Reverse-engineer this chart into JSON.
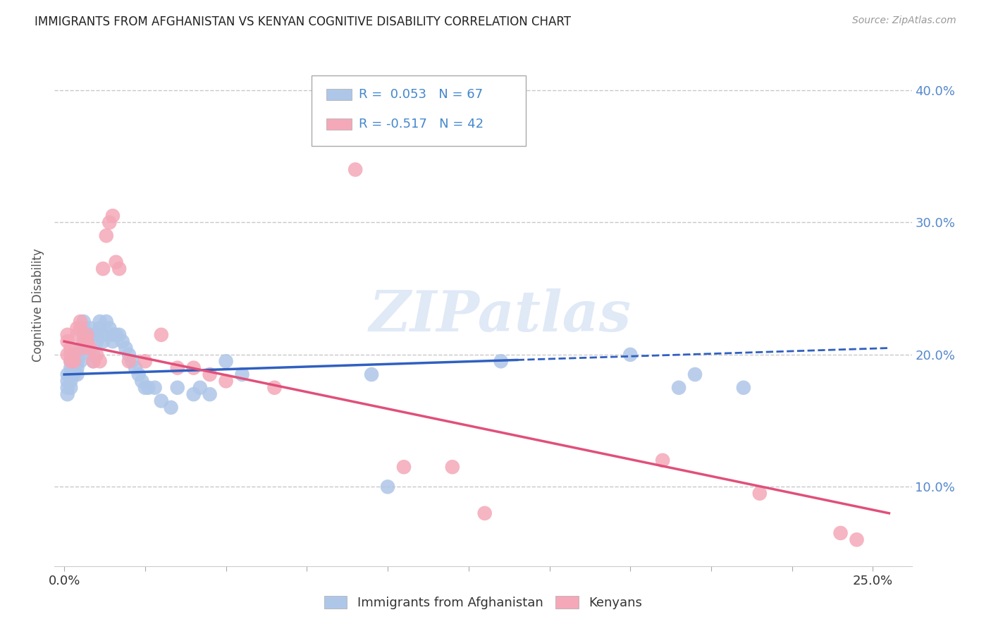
{
  "title": "IMMIGRANTS FROM AFGHANISTAN VS KENYAN COGNITIVE DISABILITY CORRELATION CHART",
  "source": "Source: ZipAtlas.com",
  "ylabel": "Cognitive Disability",
  "xlim": [
    -0.003,
    0.262
  ],
  "ylim": [
    0.04,
    0.435
  ],
  "afghanistan_R": 0.053,
  "afghanistan_N": 67,
  "kenya_R": -0.517,
  "kenya_N": 42,
  "afghanistan_color": "#aec6e8",
  "kenya_color": "#f4a8b8",
  "afghanistan_line_color": "#3060c0",
  "kenya_line_color": "#e0507a",
  "watermark": "ZIPatlas",
  "background_color": "#ffffff",
  "grid_color": "#c8c8c8",
  "afg_line_start_y": 0.185,
  "afg_line_end_y": 0.205,
  "ken_line_start_y": 0.21,
  "ken_line_end_y": 0.08,
  "afg_x": [
    0.001,
    0.001,
    0.001,
    0.001,
    0.002,
    0.002,
    0.002,
    0.002,
    0.002,
    0.003,
    0.003,
    0.003,
    0.003,
    0.004,
    0.004,
    0.004,
    0.004,
    0.005,
    0.005,
    0.005,
    0.006,
    0.006,
    0.006,
    0.007,
    0.007,
    0.007,
    0.008,
    0.008,
    0.009,
    0.009,
    0.01,
    0.01,
    0.011,
    0.011,
    0.012,
    0.012,
    0.013,
    0.014,
    0.015,
    0.015,
    0.016,
    0.017,
    0.018,
    0.019,
    0.02,
    0.021,
    0.022,
    0.023,
    0.024,
    0.025,
    0.026,
    0.028,
    0.03,
    0.033,
    0.035,
    0.04,
    0.042,
    0.045,
    0.05,
    0.055,
    0.095,
    0.1,
    0.135,
    0.175,
    0.19,
    0.195,
    0.21
  ],
  "afg_y": [
    0.185,
    0.18,
    0.175,
    0.17,
    0.195,
    0.19,
    0.185,
    0.18,
    0.175,
    0.195,
    0.19,
    0.185,
    0.2,
    0.2,
    0.195,
    0.19,
    0.185,
    0.205,
    0.2,
    0.195,
    0.225,
    0.22,
    0.215,
    0.21,
    0.21,
    0.205,
    0.22,
    0.215,
    0.2,
    0.195,
    0.215,
    0.21,
    0.225,
    0.22,
    0.215,
    0.21,
    0.225,
    0.22,
    0.215,
    0.21,
    0.215,
    0.215,
    0.21,
    0.205,
    0.2,
    0.195,
    0.19,
    0.185,
    0.18,
    0.175,
    0.175,
    0.175,
    0.165,
    0.16,
    0.175,
    0.17,
    0.175,
    0.17,
    0.195,
    0.185,
    0.185,
    0.1,
    0.195,
    0.2,
    0.175,
    0.185,
    0.175
  ],
  "ken_x": [
    0.001,
    0.001,
    0.001,
    0.002,
    0.002,
    0.002,
    0.003,
    0.003,
    0.004,
    0.004,
    0.005,
    0.005,
    0.006,
    0.006,
    0.007,
    0.007,
    0.008,
    0.009,
    0.01,
    0.011,
    0.012,
    0.013,
    0.014,
    0.015,
    0.016,
    0.017,
    0.02,
    0.025,
    0.03,
    0.035,
    0.04,
    0.045,
    0.05,
    0.065,
    0.09,
    0.105,
    0.12,
    0.13,
    0.185,
    0.215,
    0.24,
    0.245
  ],
  "ken_y": [
    0.215,
    0.21,
    0.2,
    0.205,
    0.2,
    0.195,
    0.2,
    0.195,
    0.22,
    0.215,
    0.225,
    0.22,
    0.21,
    0.205,
    0.215,
    0.21,
    0.205,
    0.195,
    0.2,
    0.195,
    0.265,
    0.29,
    0.3,
    0.305,
    0.27,
    0.265,
    0.195,
    0.195,
    0.215,
    0.19,
    0.19,
    0.185,
    0.18,
    0.175,
    0.34,
    0.115,
    0.115,
    0.08,
    0.12,
    0.095,
    0.065,
    0.06
  ]
}
